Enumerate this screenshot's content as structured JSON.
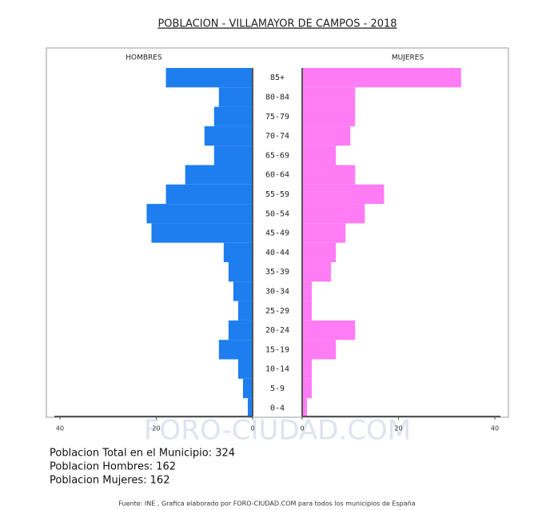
{
  "chart_data": {
    "type": "pyramid",
    "title": "POBLACION - VILLAMAYOR DE CAMPOS - 2018",
    "categories": [
      "85+",
      "80-84",
      "75-79",
      "70-74",
      "65-69",
      "60-64",
      "55-59",
      "50-54",
      "45-49",
      "40-44",
      "35-39",
      "30-34",
      "25-29",
      "20-24",
      "15-19",
      "10-14",
      "5-9",
      "0-4"
    ],
    "series": [
      {
        "name": "HOMBRES",
        "color": "#1e7ef0",
        "values": [
          18,
          7,
          8,
          10,
          8,
          14,
          18,
          22,
          21,
          6,
          5,
          4,
          3,
          5,
          7,
          3,
          2,
          1
        ]
      },
      {
        "name": "MUJERES",
        "color": "#ff7cf5",
        "values": [
          33,
          11,
          11,
          10,
          7,
          11,
          17,
          13,
          9,
          7,
          6,
          2,
          2,
          11,
          7,
          2,
          2,
          1
        ]
      }
    ],
    "xlim": [
      0,
      40
    ],
    "xticks_hombres": [
      40,
      20,
      0
    ],
    "xticks_mujeres": [
      0,
      20,
      40
    ],
    "watermark": "FORO-CIUDAD.COM",
    "summary": [
      "Poblacion Total en el Municipio: 324",
      "Poblacion Hombres: 162",
      "Poblacion Mujeres: 162"
    ],
    "source": "Fuente: INE , Grafica elaborado por FORO-CIUDAD.COM para todos los municipios de España"
  }
}
